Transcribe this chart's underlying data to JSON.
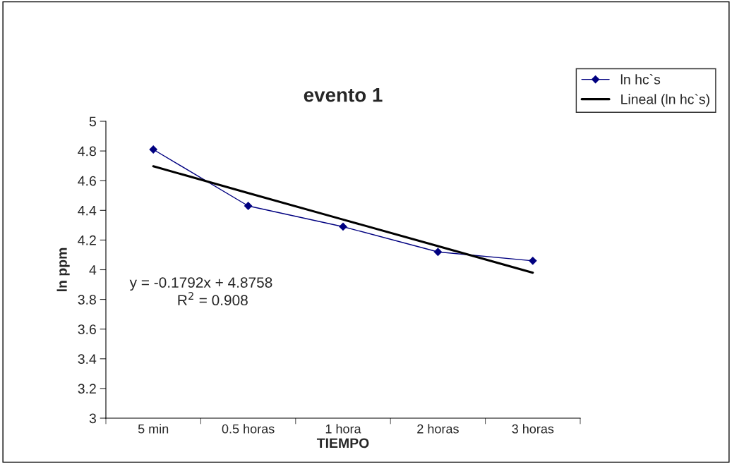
{
  "chart_data": {
    "type": "line",
    "title": "evento 1",
    "xlabel": "TIEMPO",
    "ylabel": "ln ppm",
    "categories": [
      "5 min",
      "0.5 horas",
      "1 hora",
      "2 horas",
      "3 horas"
    ],
    "series": [
      {
        "name": "ln hc`s",
        "color": "#000080",
        "values": [
          4.81,
          4.43,
          4.29,
          4.12,
          4.06
        ],
        "marker": "diamond",
        "line_style": "solid"
      },
      {
        "name": "Lineal (ln hc`s)",
        "color": "#000000",
        "values": [
          4.697,
          4.517,
          4.338,
          4.159,
          3.98
        ],
        "marker": "none",
        "line_style": "solid"
      }
    ],
    "ylim": [
      3,
      5
    ],
    "yticks": [
      3,
      3.2,
      3.4,
      3.6,
      3.8,
      4,
      4.2,
      4.4,
      4.6,
      4.8,
      5
    ],
    "annotations": [
      "y = -0.1792x + 4.8758",
      "R$^{2}$ = 0.908"
    ],
    "grid": false,
    "legend": "top right"
  }
}
